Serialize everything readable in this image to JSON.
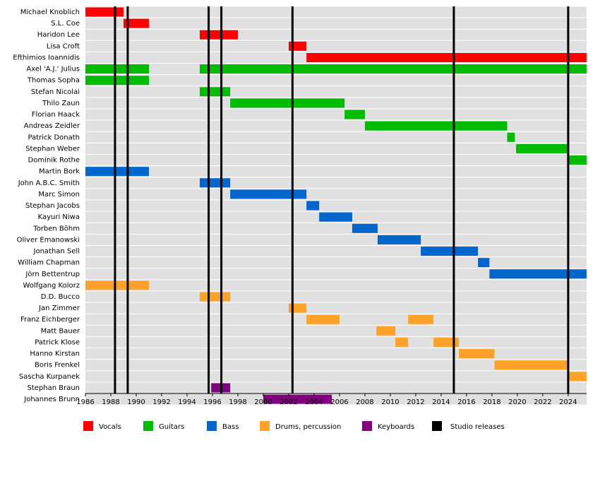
{
  "chart_data": {
    "type": "timeline",
    "categories": [
      "Michael Knoblich",
      "S.L. Coe",
      "Haridon Lee",
      "Lisa Croft",
      "Efthimios Ioannidis",
      "Axel 'A.J.' Julius",
      "Thomas Sopha",
      "Stefan Nicolai",
      "Thilo Zaun",
      "Florian Haack",
      "Andreas Zeidler",
      "Patrick Donath",
      "Stephan Weber",
      "Dominik Rothe",
      "Martin Bork",
      "John A.B.C. Smith",
      "Marc Simon",
      "Stephan Jacobs",
      "Kayuri Niwa",
      "Torben Böhm",
      "Oliver Emanowski",
      "Jonathan Sell",
      "William Chapman",
      "Jörn Bettentrup",
      "Wolfgang Kolorz",
      "D.D. Bucco",
      "Jan Zimmer",
      "Franz Eichberger",
      "Matt Bauer",
      "Patrick Klose",
      "Hanno Kirstan",
      "Boris Frenkel",
      "Sascha Kurpanek",
      "Stephan Braun",
      "Johannes Brunn"
    ],
    "series": [
      {
        "name": "Vocals",
        "color": "#ff0000",
        "values": [
          [
            [
              1986,
              1989
            ]
          ],
          [
            [
              1989,
              1991
            ]
          ],
          [
            [
              1995,
              1998
            ]
          ],
          [
            [
              2002,
              2003.4
            ]
          ],
          [
            [
              2003.4,
              2025.45
            ]
          ],
          [],
          [],
          [],
          [],
          [],
          [],
          [],
          [],
          [],
          [],
          [],
          [],
          [],
          [],
          [],
          [],
          [],
          [],
          [],
          [],
          [],
          [],
          [],
          [],
          [],
          [],
          [],
          [],
          [],
          []
        ]
      },
      {
        "name": "Guitars",
        "color": "#00bb00",
        "values": [
          [],
          [],
          [],
          [],
          [],
          [
            [
              1986,
              1991
            ],
            [
              1995,
              2025.45
            ]
          ],
          [
            [
              1986,
              1991
            ]
          ],
          [
            [
              1995,
              1997.4
            ]
          ],
          [
            [
              1997.4,
              2006.4
            ]
          ],
          [
            [
              2006.4,
              2008
            ]
          ],
          [
            [
              2008,
              2019.2
            ]
          ],
          [
            [
              2019.2,
              2019.8
            ]
          ],
          [
            [
              2019.9,
              2024
            ]
          ],
          [
            [
              2024,
              2025.45
            ]
          ],
          [],
          [],
          [],
          [],
          [],
          [],
          [],
          [],
          [],
          [],
          [],
          [],
          [],
          [],
          [],
          [],
          [],
          [],
          [],
          [],
          []
        ]
      },
      {
        "name": "Bass",
        "color": "#0066cc",
        "values": [
          [],
          [],
          [],
          [],
          [],
          [],
          [],
          [],
          [],
          [],
          [],
          [],
          [],
          [],
          [
            [
              1986,
              1991
            ]
          ],
          [
            [
              1995,
              1997.4
            ]
          ],
          [
            [
              1997.4,
              2003.4
            ]
          ],
          [
            [
              2003.4,
              2004.4
            ]
          ],
          [
            [
              2004.4,
              2007
            ]
          ],
          [
            [
              2007,
              2009
            ]
          ],
          [
            [
              2009,
              2012.4
            ]
          ],
          [
            [
              2012.4,
              2016.9
            ]
          ],
          [
            [
              2016.9,
              2017.8
            ]
          ],
          [
            [
              2017.8,
              2025.45
            ]
          ],
          [],
          [],
          [],
          [],
          [],
          [],
          [],
          [],
          [],
          [],
          []
        ]
      },
      {
        "name": "Drums, percussion",
        "color": "#ffa229",
        "values": [
          [],
          [],
          [],
          [],
          [],
          [],
          [],
          [],
          [],
          [],
          [],
          [],
          [],
          [],
          [],
          [],
          [],
          [],
          [],
          [],
          [],
          [],
          [],
          [],
          [
            [
              1986,
              1991
            ]
          ],
          [
            [
              1995,
              1997.4
            ]
          ],
          [
            [
              2002,
              2003.4
            ]
          ],
          [
            [
              2003.4,
              2006
            ],
            [
              2011.4,
              2013.4
            ]
          ],
          [
            [
              2008.9,
              2010.4
            ]
          ],
          [
            [
              2010.4,
              2011.4
            ],
            [
              2013.4,
              2015.4
            ]
          ],
          [
            [
              2015.4,
              2018.2
            ]
          ],
          [
            [
              2018.2,
              2024
            ]
          ],
          [
            [
              2024,
              2025.45
            ]
          ],
          [],
          []
        ]
      },
      {
        "name": "Keyboards",
        "color": "#800080",
        "values": [
          [],
          [],
          [],
          [],
          [],
          [],
          [],
          [],
          [],
          [],
          [],
          [],
          [],
          [],
          [],
          [],
          [],
          [],
          [],
          [],
          [],
          [],
          [],
          [],
          [],
          [],
          [],
          [],
          [],
          [],
          [],
          [],
          [],
          [
            [
              1995.9,
              1997.4
            ]
          ],
          [
            [
              2000,
              2005.4
            ]
          ]
        ]
      }
    ],
    "releases": {
      "name": "Studio releases",
      "color": "#000000",
      "values": [
        1988.33,
        1989.33,
        1995.7,
        1996.7,
        2002.3,
        2015,
        2024
      ]
    },
    "xlim": [
      1986,
      2025.45
    ],
    "xticks": [
      1986,
      1988,
      1990,
      1992,
      1994,
      1996,
      1998,
      2000,
      2002,
      2004,
      2006,
      2008,
      2010,
      2012,
      2014,
      2016,
      2018,
      2020,
      2022,
      2024
    ]
  }
}
